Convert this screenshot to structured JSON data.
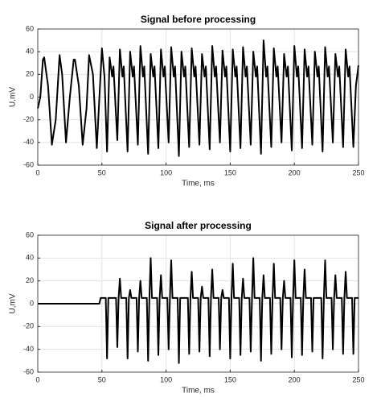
{
  "chart_data": [
    {
      "type": "line",
      "title": "Signal before processing",
      "x_label": "Time, ms",
      "y_label": "U,mV",
      "x": [
        0,
        2,
        4,
        5,
        8,
        11,
        14,
        17,
        19,
        22,
        25,
        28,
        29,
        32,
        35,
        38,
        40,
        43,
        46,
        50,
        52,
        54,
        56,
        58,
        59,
        62,
        64,
        66,
        67,
        70,
        72,
        74,
        75,
        78,
        80,
        82,
        83,
        86,
        88,
        90,
        91,
        94,
        96,
        98,
        99,
        102,
        104,
        106,
        107,
        110,
        112,
        114,
        115,
        118,
        120,
        122,
        123,
        126,
        128,
        130,
        131,
        134,
        136,
        138,
        139,
        142,
        144,
        146,
        147,
        150,
        152,
        154,
        155,
        158,
        160,
        162,
        163,
        166,
        168,
        170,
        171,
        174,
        176,
        178,
        179,
        182,
        184,
        186,
        187,
        190,
        192,
        194,
        195,
        198,
        200,
        202,
        203,
        206,
        208,
        210,
        211,
        214,
        216,
        218,
        219,
        222,
        224,
        226,
        227,
        230,
        232,
        234,
        235,
        238,
        240,
        242,
        243,
        246,
        248,
        250
      ],
      "series": [
        {
          "color": "#000000",
          "values": [
            -10,
            0,
            33,
            35,
            10,
            -42,
            -20,
            37,
            20,
            -40,
            0,
            33,
            33,
            10,
            -42,
            -10,
            37,
            20,
            -45,
            43,
            18,
            -48,
            35,
            18,
            27,
            -38,
            42,
            18,
            27,
            -48,
            40,
            18,
            27,
            -42,
            45,
            18,
            27,
            -50,
            38,
            18,
            27,
            -45,
            42,
            18,
            27,
            -40,
            44,
            18,
            27,
            -52,
            40,
            18,
            27,
            -44,
            43,
            18,
            27,
            -42,
            38,
            18,
            27,
            -46,
            45,
            18,
            27,
            -40,
            41,
            18,
            27,
            -48,
            42,
            18,
            27,
            -45,
            44,
            18,
            27,
            -42,
            40,
            18,
            27,
            -50,
            50,
            18,
            27,
            -44,
            43,
            18,
            27,
            -40,
            38,
            18,
            27,
            -47,
            45,
            18,
            27,
            -45,
            42,
            18,
            27,
            -42,
            40,
            18,
            27,
            -48,
            44,
            18,
            27,
            -40,
            38,
            18,
            27,
            -44,
            42,
            18,
            27,
            -44,
            10,
            28
          ]
        }
      ],
      "xlim": [
        0,
        250
      ],
      "xticks": [
        0,
        50,
        100,
        150,
        200,
        250
      ],
      "ylim": [
        -60,
        60
      ],
      "yticks": [
        -60,
        -40,
        -20,
        0,
        20,
        40,
        60
      ],
      "grid": true
    },
    {
      "type": "line",
      "title": "Signal after processing",
      "x_label": "Time, ms",
      "y_label": "U,mV",
      "x": [
        0,
        48,
        49,
        53,
        54,
        55,
        56,
        57,
        61,
        62,
        63,
        64,
        65,
        69,
        70,
        71,
        72,
        73,
        77,
        78,
        79,
        80,
        81,
        85,
        86,
        87,
        88,
        89,
        93,
        94,
        95,
        96,
        97,
        101,
        102,
        103,
        104,
        105,
        109,
        110,
        111,
        112,
        113,
        117,
        118,
        119,
        120,
        121,
        125,
        126,
        127,
        128,
        129,
        133,
        134,
        135,
        136,
        137,
        141,
        142,
        143,
        144,
        145,
        149,
        150,
        151,
        152,
        153,
        157,
        158,
        159,
        160,
        161,
        165,
        166,
        167,
        168,
        169,
        173,
        174,
        175,
        176,
        177,
        181,
        182,
        183,
        184,
        185,
        189,
        190,
        191,
        192,
        193,
        197,
        198,
        199,
        200,
        201,
        205,
        206,
        207,
        208,
        209,
        213,
        214,
        215,
        216,
        217,
        221,
        222,
        223,
        224,
        225,
        229,
        230,
        231,
        232,
        233,
        237,
        238,
        239,
        240,
        241,
        245,
        246,
        247,
        248,
        250
      ],
      "series": [
        {
          "color": "#000000",
          "values": [
            0,
            0,
            5,
            5,
            -48,
            5,
            5,
            5,
            5,
            -38,
            5,
            22,
            5,
            5,
            -48,
            5,
            12,
            5,
            5,
            -42,
            5,
            20,
            5,
            5,
            -50,
            5,
            40,
            5,
            5,
            -45,
            5,
            25,
            5,
            5,
            -40,
            5,
            38,
            5,
            5,
            -52,
            5,
            5,
            5,
            5,
            -44,
            5,
            28,
            5,
            5,
            -42,
            5,
            15,
            5,
            5,
            -46,
            5,
            30,
            5,
            5,
            -40,
            5,
            12,
            5,
            5,
            -48,
            5,
            35,
            5,
            5,
            -45,
            5,
            22,
            5,
            5,
            -42,
            5,
            40,
            5,
            5,
            -50,
            5,
            25,
            5,
            5,
            -44,
            5,
            35,
            5,
            5,
            -40,
            5,
            20,
            5,
            5,
            -47,
            5,
            38,
            5,
            5,
            -45,
            5,
            30,
            5,
            5,
            -42,
            5,
            5,
            5,
            5,
            -48,
            5,
            38,
            5,
            5,
            -40,
            5,
            25,
            5,
            5,
            -44,
            5,
            28,
            5,
            5,
            -44,
            5,
            5,
            5
          ]
        }
      ],
      "xlim": [
        0,
        250
      ],
      "xticks": [
        0,
        50,
        100,
        150,
        200,
        250
      ],
      "ylim": [
        -60,
        60
      ],
      "yticks": [
        -60,
        -40,
        -20,
        0,
        20,
        40,
        60
      ],
      "grid": true
    }
  ]
}
